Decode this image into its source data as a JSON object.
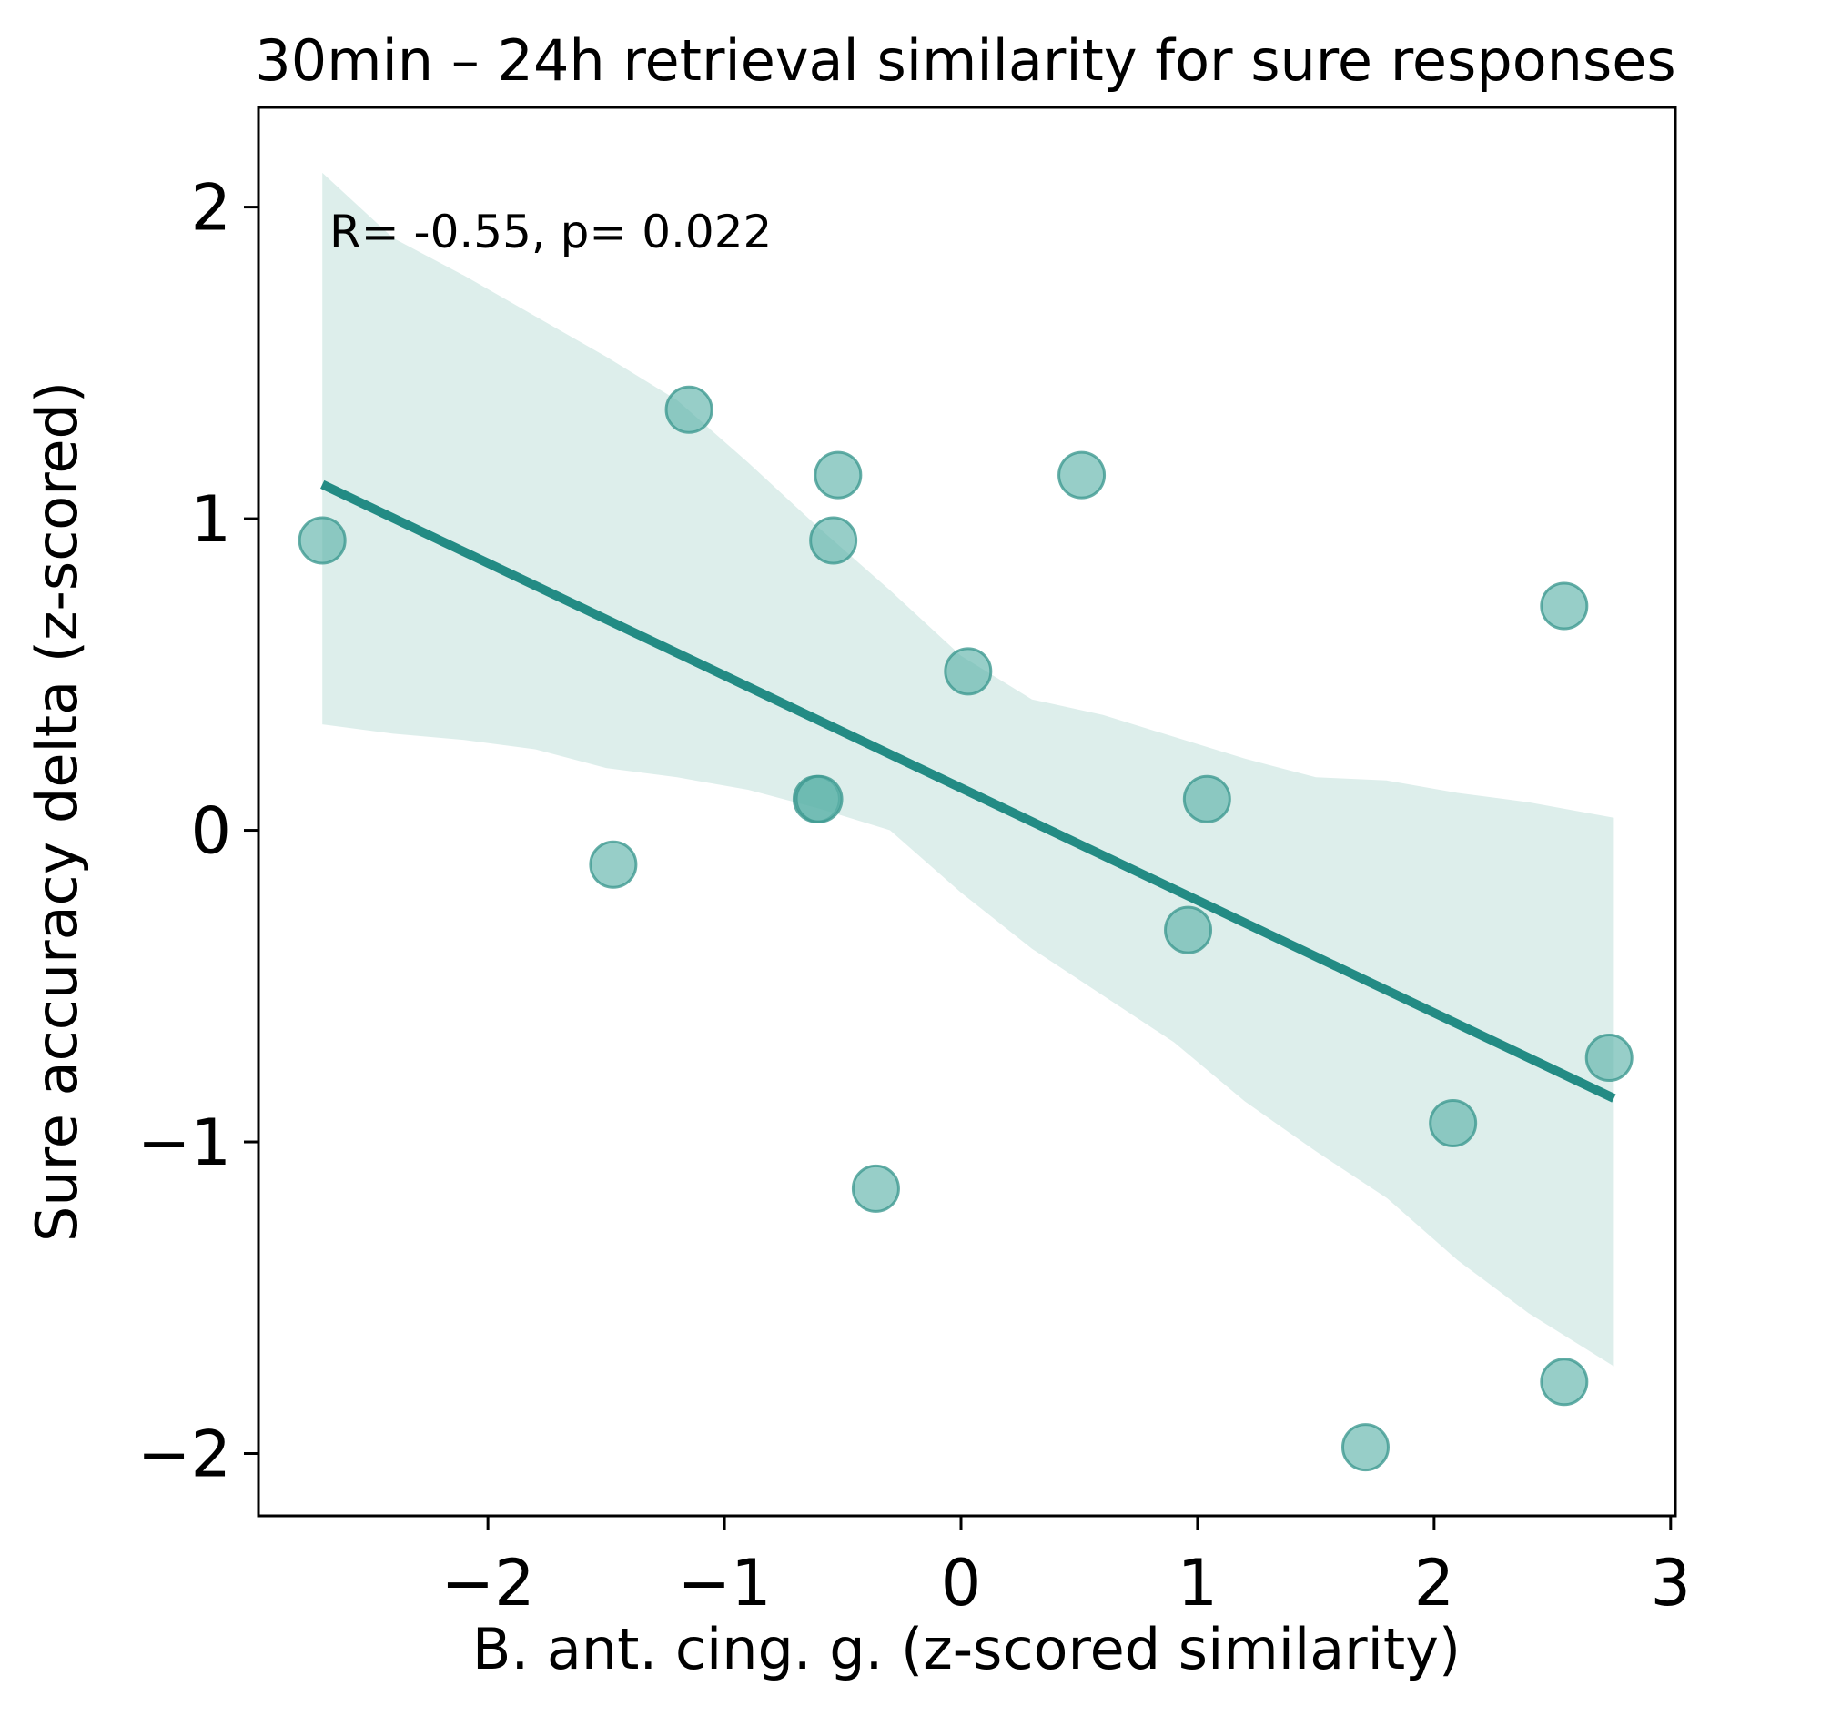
{
  "chart_data": {
    "type": "scatter",
    "title": "30min – 24h retrieval similarity for sure responses",
    "xlabel": "B. ant. cing. g. (z-scored similarity)",
    "ylabel": "Sure accuracy delta (z-scored)",
    "annotation": "R= -0.55, p= 0.022",
    "xlim": [
      -2.97,
      3.02
    ],
    "ylim": [
      -2.2,
      2.32
    ],
    "x_ticks": [
      -2,
      -1,
      0,
      1,
      2,
      3
    ],
    "x_tick_labels": [
      "−2",
      "−1",
      "0",
      "1",
      "2",
      "3"
    ],
    "y_ticks": [
      -2,
      -1,
      0,
      1,
      2
    ],
    "y_tick_labels": [
      "−2",
      "−1",
      "0",
      "1",
      "2"
    ],
    "grid": false,
    "legend": "none",
    "colors": {
      "points": "#5fb3aa",
      "point_edge": "#3f9a91",
      "line": "#238b84",
      "band": "#ddeeeb",
      "axis": "#000000"
    },
    "points": {
      "x": [
        -2.7,
        -1.15,
        -0.52,
        -0.54,
        0.51,
        2.55,
        0.03,
        -0.61,
        -0.6,
        1.04,
        -1.47,
        0.96,
        2.74,
        2.08,
        -0.36,
        2.55,
        1.71
      ],
      "y": [
        0.93,
        1.35,
        1.14,
        0.93,
        1.14,
        0.72,
        0.51,
        0.1,
        0.1,
        0.1,
        -0.11,
        -0.32,
        -0.73,
        -0.94,
        -1.15,
        -1.77,
        -1.98
      ]
    },
    "regression": {
      "x": [
        -2.7,
        2.76
      ],
      "y": [
        1.11,
        -0.86
      ]
    },
    "confidence_band": {
      "x": [
        -2.7,
        -2.4,
        -2.1,
        -1.8,
        -1.5,
        -1.2,
        -0.9,
        -0.6,
        -0.3,
        0.0,
        0.3,
        0.6,
        0.9,
        1.2,
        1.5,
        1.8,
        2.1,
        2.4,
        2.76
      ],
      "upper": [
        2.11,
        1.9,
        1.78,
        1.65,
        1.52,
        1.38,
        1.18,
        0.97,
        0.77,
        0.56,
        0.42,
        0.37,
        0.3,
        0.23,
        0.17,
        0.16,
        0.12,
        0.09,
        0.04
      ],
      "lower": [
        0.34,
        0.31,
        0.29,
        0.26,
        0.2,
        0.17,
        0.13,
        0.07,
        0.0,
        -0.2,
        -0.38,
        -0.53,
        -0.68,
        -0.87,
        -1.03,
        -1.18,
        -1.38,
        -1.55,
        -1.72
      ]
    }
  }
}
